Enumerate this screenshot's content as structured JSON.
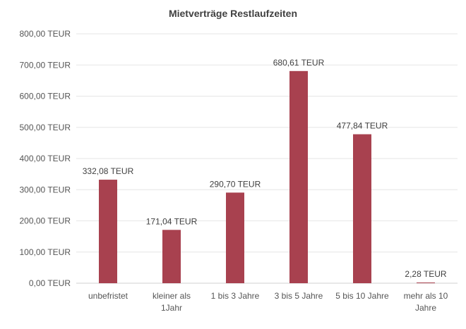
{
  "chart_data": {
    "type": "bar",
    "title": "Mietverträge Restlaufzeiten",
    "categories": [
      [
        "unbefristet"
      ],
      [
        "kleiner als",
        "1Jahr"
      ],
      [
        "1 bis 3 Jahre"
      ],
      [
        "3 bis 5 Jahre"
      ],
      [
        "5 bis 10 Jahre"
      ],
      [
        "mehr als 10",
        "Jahre"
      ]
    ],
    "values": [
      332.08,
      171.04,
      290.7,
      680.61,
      477.84,
      2.28
    ],
    "data_labels": [
      "332,08 TEUR",
      "171,04 TEUR",
      "290,70 TEUR",
      "680,61 TEUR",
      "477,84 TEUR",
      "2,28 TEUR"
    ],
    "y_ticks": [
      0,
      100,
      200,
      300,
      400,
      500,
      600,
      700,
      800
    ],
    "y_tick_labels": [
      "0,00 TEUR",
      "100,00 TEUR",
      "200,00 TEUR",
      "300,00 TEUR",
      "400,00 TEUR",
      "500,00 TEUR",
      "600,00 TEUR",
      "700,00 TEUR",
      "800,00 TEUR"
    ],
    "ylim": [
      0,
      800
    ],
    "bar_color": "#a8414f",
    "grid": true,
    "legend": false
  }
}
